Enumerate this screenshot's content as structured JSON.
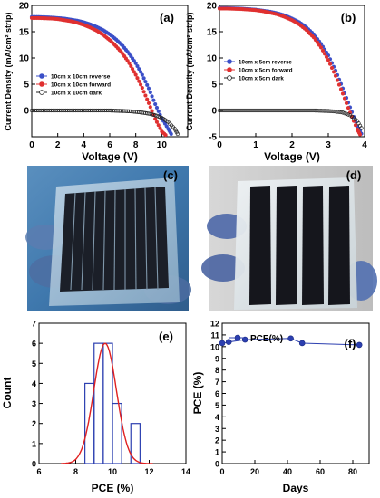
{
  "chart_data": [
    {
      "id": "a",
      "panel_label": "(a)",
      "type": "line",
      "xlabel": "Voltage (V)",
      "ylabel": "Current Density (mA/cm² strip)",
      "xlim": [
        0,
        12
      ],
      "ylim": [
        -5,
        20
      ],
      "xticks": [
        0,
        2,
        4,
        6,
        8,
        10
      ],
      "yticks": [
        0,
        5,
        10,
        15,
        20
      ],
      "legend_position": "middle-left",
      "series": [
        {
          "name": "10cm x 10cm reverse",
          "color": "#3b4fc8",
          "x": [
            0,
            0.5,
            1,
            1.5,
            2,
            2.5,
            3,
            3.5,
            4,
            4.5,
            5,
            5.5,
            6,
            6.5,
            7,
            7.5,
            8,
            8.5,
            9,
            9.5,
            10,
            10.5,
            10.8
          ],
          "y": [
            17.8,
            17.8,
            17.75,
            17.7,
            17.6,
            17.5,
            17.3,
            17.1,
            16.8,
            16.4,
            15.9,
            15.3,
            14.5,
            13.5,
            12.3,
            10.8,
            9.0,
            6.8,
            4.2,
            1.2,
            -1.5,
            -3.5,
            -4.8
          ]
        },
        {
          "name": "10cm x 10cm forward",
          "color": "#e03030",
          "x": [
            0,
            0.5,
            1,
            1.5,
            2,
            2.5,
            3,
            3.5,
            4,
            4.5,
            5,
            5.5,
            6,
            6.5,
            7,
            7.5,
            8,
            8.5,
            9,
            9.5,
            10,
            10.4
          ],
          "y": [
            17.6,
            17.6,
            17.55,
            17.5,
            17.4,
            17.2,
            17.0,
            16.7,
            16.3,
            15.8,
            15.2,
            14.4,
            13.4,
            12.2,
            10.8,
            9.0,
            6.8,
            4.3,
            1.4,
            -1.6,
            -4.0,
            -4.9
          ]
        },
        {
          "name": "10cm x 10cm dark",
          "color": "#222222",
          "x": [
            0,
            0.5,
            1,
            1.5,
            2,
            2.5,
            3,
            3.5,
            4,
            4.5,
            5,
            5.5,
            6,
            6.5,
            7,
            7.5,
            8,
            8.5,
            9,
            9.5,
            10,
            10.5,
            11,
            11.3
          ],
          "y": [
            0,
            0,
            0,
            0,
            0,
            0,
            0,
            0,
            0,
            0,
            0,
            0,
            0,
            -0.05,
            -0.1,
            -0.15,
            -0.25,
            -0.4,
            -0.6,
            -0.9,
            -1.4,
            -2.2,
            -3.5,
            -4.8
          ]
        }
      ]
    },
    {
      "id": "b",
      "panel_label": "(b)",
      "type": "line",
      "xlabel": "Voltage (V)",
      "ylabel": "Current Density (mA/cm² strip)",
      "xlim": [
        0,
        4
      ],
      "ylim": [
        -5,
        20
      ],
      "xticks": [
        0,
        1,
        2,
        3,
        4
      ],
      "yticks": [
        -5,
        0,
        5,
        10,
        15,
        20
      ],
      "legend_position": "middle-left",
      "series": [
        {
          "name": "10cm x 5cm reverse",
          "color": "#3b4fc8",
          "x": [
            0,
            0.2,
            0.4,
            0.6,
            0.8,
            1,
            1.2,
            1.4,
            1.6,
            1.8,
            2,
            2.2,
            2.4,
            2.6,
            2.8,
            3,
            3.2,
            3.4,
            3.6,
            3.8,
            3.95
          ],
          "y": [
            19.5,
            19.5,
            19.45,
            19.4,
            19.3,
            19.2,
            19.0,
            18.8,
            18.5,
            18.1,
            17.5,
            16.8,
            15.8,
            14.5,
            12.7,
            10.5,
            7.6,
            4.2,
            0.6,
            -3.0,
            -4.9
          ]
        },
        {
          "name": "10cm x 5cm forward",
          "color": "#e03030",
          "x": [
            0,
            0.2,
            0.4,
            0.6,
            0.8,
            1,
            1.2,
            1.4,
            1.6,
            1.8,
            2,
            2.2,
            2.4,
            2.6,
            2.8,
            3,
            3.2,
            3.4,
            3.6,
            3.8,
            3.9
          ],
          "y": [
            19.4,
            19.4,
            19.35,
            19.3,
            19.2,
            19.1,
            18.9,
            18.6,
            18.3,
            17.8,
            17.2,
            16.4,
            15.3,
            13.9,
            12.0,
            9.6,
            6.6,
            3.2,
            -0.4,
            -3.6,
            -4.9
          ]
        },
        {
          "name": "10cm x 5cm dark",
          "color": "#222222",
          "x": [
            0,
            0.2,
            0.4,
            0.6,
            0.8,
            1,
            1.2,
            1.4,
            1.6,
            1.8,
            2,
            2.2,
            2.4,
            2.6,
            2.8,
            3,
            3.2,
            3.4,
            3.6,
            3.8,
            3.95
          ],
          "y": [
            0,
            0,
            0,
            0,
            0,
            0,
            0,
            0,
            0,
            0,
            0,
            0,
            0,
            0,
            -0.05,
            -0.1,
            -0.2,
            -0.4,
            -0.9,
            -2.0,
            -3.8
          ]
        }
      ]
    },
    {
      "id": "e",
      "panel_label": "(e)",
      "type": "bar",
      "xlabel": "PCE (%)",
      "ylabel": "Count",
      "xlim": [
        6,
        14
      ],
      "ylim": [
        0,
        7
      ],
      "xticks": [
        6,
        8,
        10,
        12,
        14
      ],
      "yticks": [
        0,
        1,
        2,
        3,
        4,
        5,
        6,
        7
      ],
      "bin_width": 0.5,
      "bins": [
        8.5,
        9.0,
        9.5,
        10.0,
        11.0
      ],
      "values": [
        4,
        6,
        6,
        3,
        2
      ],
      "fit": {
        "type": "gaussian",
        "mean": 9.6,
        "sigma": 0.62,
        "peak": 6.0,
        "color": "#e02020"
      },
      "bar_color": "#2c3fb0"
    },
    {
      "id": "f",
      "panel_label": "(f)",
      "type": "line",
      "xlabel": "Days",
      "ylabel": "PCE (%)",
      "xlim": [
        0,
        90
      ],
      "ylim": [
        0,
        12
      ],
      "xticks": [
        0,
        20,
        40,
        60,
        80
      ],
      "yticks": [
        0,
        1,
        2,
        3,
        4,
        5,
        6,
        7,
        8,
        9,
        10,
        11,
        12
      ],
      "legend_position": "top-left",
      "series": [
        {
          "name": "PCE(%)",
          "color": "#2c3fb0",
          "x": [
            0,
            4,
            14,
            42,
            49,
            84
          ],
          "y": [
            10.3,
            10.4,
            10.6,
            10.7,
            10.3,
            10.15
          ]
        }
      ]
    }
  ],
  "photos": [
    {
      "id": "c",
      "panel_label": "(c)",
      "description": "10cm x 10cm module held in gloved hand"
    },
    {
      "id": "d",
      "panel_label": "(d)",
      "description": "10cm x 5cm module with four dark strips"
    }
  ]
}
